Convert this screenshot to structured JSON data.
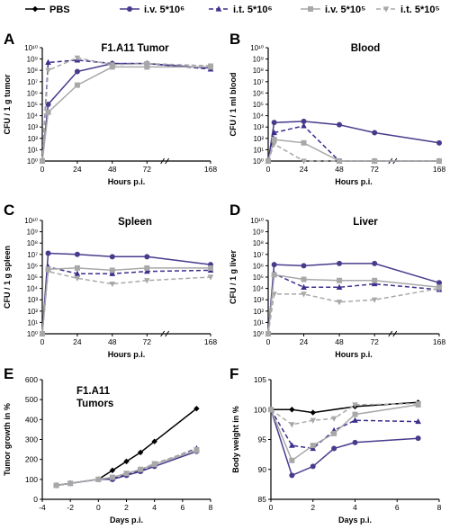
{
  "legend": [
    {
      "name": "PBS",
      "color": "#000000",
      "dash": "",
      "marker": "diamond"
    },
    {
      "name": "i.v. 5*10⁶",
      "color": "#4a3a8c",
      "dash": "",
      "marker": "circle"
    },
    {
      "name": "i.t. 5*10⁶",
      "color": "#3a2f8c",
      "dash": "5,3",
      "marker": "triangle"
    },
    {
      "name": "i.v. 5*10⁵",
      "color": "#a8a8a8",
      "dash": "",
      "marker": "square"
    },
    {
      "name": "i.t. 5*10⁵",
      "color": "#a8a8a8",
      "dash": "5,3",
      "marker": "triangle-down"
    }
  ],
  "chart_data": [
    {
      "panel": "A",
      "type": "line",
      "title": "F1.A11 Tumor",
      "xlabel": "Hours p.i.",
      "ylabel": "CFU / 1 g tumor",
      "x_ticks": [
        "0",
        "24",
        "48",
        "72",
        "168"
      ],
      "y_ticks": [
        "10⁰",
        "10¹",
        "10²",
        "10³",
        "10⁴",
        "10⁵",
        "10⁶",
        "10⁷",
        "10⁸",
        "10⁹",
        "10¹⁰"
      ],
      "y_scale": "log10",
      "series": [
        {
          "name": "i.v. 5*10⁶",
          "x": [
            "0",
            "4",
            "24",
            "48",
            "72",
            "168"
          ],
          "y_log10": [
            0,
            5,
            7.9,
            8.6,
            8.6,
            8.2
          ]
        },
        {
          "name": "i.t. 5*10⁶",
          "x": [
            "0",
            "4",
            "24",
            "48",
            "72",
            "168"
          ],
          "y_log10": [
            0,
            8.7,
            8.9,
            8.6,
            8.6,
            8.1
          ]
        },
        {
          "name": "i.v. 5*10⁵",
          "x": [
            "0",
            "4",
            "24",
            "48",
            "72",
            "168"
          ],
          "y_log10": [
            0,
            4.3,
            6.7,
            8.3,
            8.3,
            8.3
          ]
        },
        {
          "name": "i.t. 5*10⁵",
          "x": [
            "0",
            "4",
            "24",
            "48",
            "72",
            "168"
          ],
          "y_log10": [
            0,
            8.0,
            9.1,
            8.5,
            8.6,
            8.4
          ]
        }
      ]
    },
    {
      "panel": "B",
      "type": "line",
      "title": "Blood",
      "xlabel": "Hours p.i.",
      "ylabel": "CFU / 1 ml blood",
      "x_ticks": [
        "0",
        "24",
        "48",
        "72",
        "168"
      ],
      "y_ticks": [
        "10⁰",
        "10¹",
        "10²",
        "10³",
        "10⁴",
        "10⁵",
        "10⁶",
        "10⁷",
        "10⁸",
        "10⁹",
        "10¹⁰"
      ],
      "y_scale": "log10",
      "series": [
        {
          "name": "i.v. 5*10⁶",
          "x": [
            "0",
            "4",
            "24",
            "48",
            "72",
            "168"
          ],
          "y_log10": [
            0,
            3.4,
            3.5,
            3.2,
            2.5,
            1.6
          ]
        },
        {
          "name": "i.t. 5*10⁶",
          "x": [
            "0",
            "4",
            "24",
            "48",
            "72",
            "168"
          ],
          "y_log10": [
            0,
            2.5,
            3.1,
            0,
            0,
            0
          ]
        },
        {
          "name": "i.v. 5*10⁵",
          "x": [
            "0",
            "4",
            "24",
            "48",
            "72",
            "168"
          ],
          "y_log10": [
            0,
            1.9,
            1.6,
            0,
            0,
            0
          ]
        },
        {
          "name": "i.t. 5*10⁵",
          "x": [
            "0",
            "4",
            "24",
            "48",
            "72",
            "168"
          ],
          "y_log10": [
            0,
            1.5,
            0,
            0,
            0,
            0
          ]
        }
      ]
    },
    {
      "panel": "C",
      "type": "line",
      "title": "Spleen",
      "xlabel": "Hours p.i.",
      "ylabel": "CFU / 1 g spleen",
      "x_ticks": [
        "0",
        "24",
        "48",
        "72",
        "168"
      ],
      "y_ticks": [
        "10⁰",
        "10¹",
        "10²",
        "10³",
        "10⁴",
        "10⁵",
        "10⁶",
        "10⁷",
        "10⁸",
        "10⁹",
        "10¹⁰"
      ],
      "y_scale": "log10",
      "series": [
        {
          "name": "i.v. 5*10⁶",
          "x": [
            "0",
            "4",
            "24",
            "48",
            "72",
            "168"
          ],
          "y_log10": [
            0,
            7.1,
            7.0,
            6.8,
            6.8,
            6.1
          ]
        },
        {
          "name": "i.t. 5*10⁶",
          "x": [
            "0",
            "4",
            "24",
            "48",
            "72",
            "168"
          ],
          "y_log10": [
            0,
            5.9,
            5.3,
            5.3,
            5.5,
            5.6
          ]
        },
        {
          "name": "i.v. 5*10⁵",
          "x": [
            "0",
            "4",
            "24",
            "48",
            "72",
            "168"
          ],
          "y_log10": [
            0,
            5.7,
            5.8,
            5.6,
            5.8,
            5.8
          ]
        },
        {
          "name": "i.t. 5*10⁵",
          "x": [
            "0",
            "4",
            "24",
            "48",
            "72",
            "168"
          ],
          "y_log10": [
            0,
            5.5,
            4.9,
            4.4,
            4.7,
            5.0
          ]
        }
      ]
    },
    {
      "panel": "D",
      "type": "line",
      "title": "Liver",
      "xlabel": "Hours p.i.",
      "ylabel": "CFU / 1 g liver",
      "x_ticks": [
        "0",
        "24",
        "48",
        "72",
        "168"
      ],
      "y_ticks": [
        "10⁰",
        "10¹",
        "10²",
        "10³",
        "10⁴",
        "10⁵",
        "10⁶",
        "10⁷",
        "10⁸",
        "10⁹",
        "10¹⁰"
      ],
      "y_scale": "log10",
      "series": [
        {
          "name": "i.v. 5*10⁶",
          "x": [
            "0",
            "4",
            "24",
            "48",
            "72",
            "168"
          ],
          "y_log10": [
            0,
            6.1,
            6.0,
            6.2,
            6.2,
            4.5
          ]
        },
        {
          "name": "i.t. 5*10⁶",
          "x": [
            "0",
            "4",
            "24",
            "48",
            "72",
            "168"
          ],
          "y_log10": [
            0,
            5.3,
            4.1,
            4.1,
            4.4,
            3.9
          ]
        },
        {
          "name": "i.v. 5*10⁵",
          "x": [
            "0",
            "4",
            "24",
            "48",
            "72",
            "168"
          ],
          "y_log10": [
            0,
            5.2,
            4.8,
            4.7,
            4.7,
            4.1
          ]
        },
        {
          "name": "i.t. 5*10⁵",
          "x": [
            "0",
            "4",
            "24",
            "48",
            "72",
            "168"
          ],
          "y_log10": [
            0,
            3.5,
            3.5,
            2.8,
            3.0,
            4.0
          ]
        }
      ]
    },
    {
      "panel": "E",
      "type": "line",
      "title": "F1.A11\nTumors",
      "xlabel": "Days p.i.",
      "ylabel": "Tumor growth in %",
      "xlim": [
        -4,
        8
      ],
      "ylim": [
        0,
        600
      ],
      "x_ticks": [
        "-4",
        "-2",
        "0",
        "2",
        "4",
        "6",
        "8"
      ],
      "y_ticks": [
        "0",
        "100",
        "200",
        "300",
        "400",
        "500",
        "600"
      ],
      "series": [
        {
          "name": "PBS",
          "x": [
            -3,
            -2,
            0,
            1,
            2,
            3,
            4,
            7
          ],
          "y": [
            70,
            80,
            100,
            145,
            190,
            235,
            290,
            455
          ]
        },
        {
          "name": "i.v. 5*10⁶",
          "x": [
            -3,
            -2,
            0,
            1,
            2,
            3,
            4,
            7
          ],
          "y": [
            70,
            80,
            100,
            100,
            120,
            140,
            165,
            240
          ]
        },
        {
          "name": "i.t. 5*10⁶",
          "x": [
            -3,
            -2,
            0,
            1,
            2,
            3,
            4,
            7
          ],
          "y": [
            70,
            80,
            100,
            105,
            125,
            145,
            175,
            255
          ]
        },
        {
          "name": "i.v. 5*10⁵",
          "x": [
            -3,
            -2,
            0,
            1,
            2,
            3,
            4,
            7
          ],
          "y": [
            70,
            80,
            100,
            110,
            130,
            150,
            175,
            245
          ]
        },
        {
          "name": "i.t. 5*10⁵",
          "x": [
            -3,
            -2,
            0,
            1,
            2,
            3,
            4,
            7
          ],
          "y": [
            70,
            80,
            100,
            110,
            130,
            150,
            180,
            250
          ]
        }
      ]
    },
    {
      "panel": "F",
      "type": "line",
      "title": "",
      "xlabel": "Days p.i.",
      "ylabel": "Body weight in %",
      "xlim": [
        0,
        8
      ],
      "ylim": [
        85,
        105
      ],
      "x_ticks": [
        "0",
        "2",
        "4",
        "6",
        "8"
      ],
      "y_ticks": [
        "85",
        "90",
        "95",
        "100",
        "105"
      ],
      "series": [
        {
          "name": "PBS",
          "x": [
            0,
            1,
            2,
            4,
            7
          ],
          "y": [
            100,
            100,
            99.5,
            100.5,
            101.2
          ]
        },
        {
          "name": "i.v. 5*10⁶",
          "x": [
            0,
            1,
            2,
            3,
            4,
            7
          ],
          "y": [
            100,
            89,
            90.5,
            93.5,
            94.5,
            95.2
          ]
        },
        {
          "name": "i.t. 5*10⁶",
          "x": [
            0,
            1,
            2,
            3,
            4,
            7
          ],
          "y": [
            100,
            94,
            93.5,
            96.5,
            98.2,
            98
          ]
        },
        {
          "name": "i.v. 5*10⁵",
          "x": [
            0,
            1,
            2,
            3,
            4,
            7
          ],
          "y": [
            100,
            91.5,
            94,
            96,
            99.2,
            100.8
          ]
        },
        {
          "name": "i.t. 5*10⁵",
          "x": [
            0,
            1,
            2,
            3,
            4,
            7
          ],
          "y": [
            100,
            97.5,
            98.2,
            98.5,
            100.8,
            101
          ]
        }
      ]
    }
  ]
}
